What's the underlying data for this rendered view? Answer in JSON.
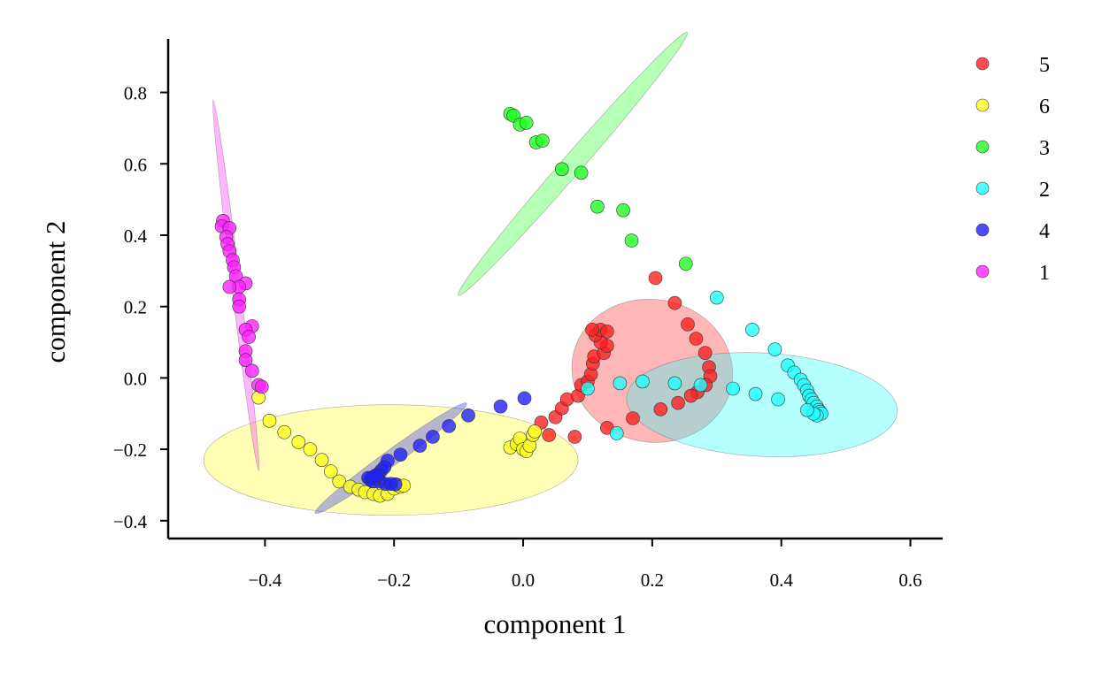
{
  "chart_data": {
    "type": "scatter",
    "title": "",
    "xlabel": "component 1",
    "ylabel": "component 2",
    "xlim": [
      -0.55,
      0.65
    ],
    "ylim": [
      -0.45,
      0.95
    ],
    "xticks": [
      -0.4,
      -0.2,
      0.0,
      0.2,
      0.4,
      0.6
    ],
    "yticks": [
      -0.4,
      -0.2,
      0.0,
      0.2,
      0.4,
      0.6,
      0.8
    ],
    "xtick_labels": [
      "−0.4",
      "−0.2",
      "0.0",
      "0.2",
      "0.4",
      "0.6"
    ],
    "ytick_labels": [
      "−0.4",
      "−0.2",
      "0.0",
      "0.2",
      "0.4",
      "0.6",
      "0.8"
    ],
    "grid": false,
    "legend_position": "top-right outside",
    "series": [
      {
        "name": "5",
        "color": "#ff2020",
        "ellipse": {
          "cx": 0.2,
          "cy": 0.02,
          "rx": 0.125,
          "ry": 0.2,
          "angle_deg": -10
        },
        "points": [
          [
            0.205,
            0.28
          ],
          [
            0.235,
            0.21
          ],
          [
            0.255,
            0.15
          ],
          [
            0.268,
            0.11
          ],
          [
            0.282,
            0.07
          ],
          [
            0.288,
            0.03
          ],
          [
            0.29,
            0.005
          ],
          [
            0.283,
            -0.02
          ],
          [
            0.27,
            -0.04
          ],
          [
            0.26,
            -0.05
          ],
          [
            0.24,
            -0.07
          ],
          [
            0.213,
            -0.088
          ],
          [
            0.17,
            -0.113
          ],
          [
            0.13,
            -0.14
          ],
          [
            0.08,
            -0.165
          ],
          [
            0.04,
            -0.16
          ],
          [
            0.028,
            -0.125
          ],
          [
            0.05,
            -0.11
          ],
          [
            0.06,
            -0.085
          ],
          [
            0.068,
            -0.06
          ],
          [
            0.085,
            -0.05
          ],
          [
            0.09,
            -0.02
          ],
          [
            0.1,
            -0.01
          ],
          [
            0.105,
            0.01
          ],
          [
            0.108,
            0.04
          ],
          [
            0.11,
            0.06
          ],
          [
            0.125,
            0.07
          ],
          [
            0.13,
            0.09
          ],
          [
            0.12,
            0.1
          ],
          [
            0.112,
            0.12
          ],
          [
            0.12,
            0.135
          ],
          [
            0.13,
            0.13
          ],
          [
            0.107,
            0.135
          ]
        ]
      },
      {
        "name": "6",
        "color": "#ffff20",
        "ellipse": {
          "cx": -0.205,
          "cy": -0.23,
          "rx": 0.29,
          "ry": 0.155,
          "angle_deg": 0
        },
        "points": [
          [
            -0.41,
            -0.055
          ],
          [
            -0.393,
            -0.12
          ],
          [
            -0.37,
            -0.152
          ],
          [
            -0.348,
            -0.18
          ],
          [
            -0.33,
            -0.2
          ],
          [
            -0.312,
            -0.23
          ],
          [
            -0.298,
            -0.262
          ],
          [
            -0.285,
            -0.29
          ],
          [
            -0.268,
            -0.305
          ],
          [
            -0.255,
            -0.313
          ],
          [
            -0.245,
            -0.32
          ],
          [
            -0.232,
            -0.325
          ],
          [
            -0.222,
            -0.33
          ],
          [
            -0.21,
            -0.325
          ],
          [
            -0.2,
            -0.31
          ],
          [
            -0.195,
            -0.3
          ],
          [
            -0.19,
            -0.305
          ],
          [
            -0.185,
            -0.302
          ],
          [
            -0.02,
            -0.195
          ],
          [
            -0.01,
            -0.185
          ],
          [
            -0.005,
            -0.17
          ],
          [
            0.0,
            -0.2
          ],
          [
            0.005,
            -0.205
          ],
          [
            0.01,
            -0.19
          ],
          [
            0.015,
            -0.16
          ],
          [
            0.018,
            -0.15
          ]
        ]
      },
      {
        "name": "3",
        "color": "#20ff20",
        "ellipse": {
          "cx": 0.077,
          "cy": 0.6,
          "rx": 0.27,
          "ry": 0.028,
          "angle_deg": 49
        },
        "points": [
          [
            -0.02,
            0.74
          ],
          [
            -0.015,
            0.735
          ],
          [
            -0.005,
            0.71
          ],
          [
            0.005,
            0.715
          ],
          [
            0.02,
            0.66
          ],
          [
            0.03,
            0.665
          ],
          [
            0.06,
            0.585
          ],
          [
            0.09,
            0.575
          ],
          [
            0.115,
            0.48
          ],
          [
            0.155,
            0.47
          ],
          [
            0.168,
            0.385
          ],
          [
            0.252,
            0.32
          ]
        ]
      },
      {
        "name": "2",
        "color": "#20ffff",
        "ellipse": {
          "cx": 0.37,
          "cy": -0.075,
          "rx": 0.21,
          "ry": 0.145,
          "angle_deg": -3
        },
        "points": [
          [
            0.3,
            0.225
          ],
          [
            0.355,
            0.135
          ],
          [
            0.39,
            0.08
          ],
          [
            0.41,
            0.035
          ],
          [
            0.42,
            0.015
          ],
          [
            0.43,
            -0.005
          ],
          [
            0.435,
            -0.02
          ],
          [
            0.44,
            -0.035
          ],
          [
            0.443,
            -0.05
          ],
          [
            0.447,
            -0.06
          ],
          [
            0.45,
            -0.07
          ],
          [
            0.455,
            -0.08
          ],
          [
            0.458,
            -0.09
          ],
          [
            0.46,
            -0.095
          ],
          [
            0.462,
            -0.1
          ],
          [
            0.455,
            -0.105
          ],
          [
            0.45,
            -0.1
          ],
          [
            0.44,
            -0.09
          ],
          [
            0.395,
            -0.06
          ],
          [
            0.36,
            -0.045
          ],
          [
            0.325,
            -0.03
          ],
          [
            0.275,
            -0.02
          ],
          [
            0.235,
            -0.015
          ],
          [
            0.185,
            -0.01
          ],
          [
            0.15,
            -0.015
          ],
          [
            0.1,
            -0.03
          ],
          [
            0.145,
            -0.155
          ]
        ]
      },
      {
        "name": "4",
        "color": "#2020ff",
        "ellipse": {
          "cx": -0.205,
          "cy": -0.225,
          "rx": 0.145,
          "ry": 0.022,
          "angle_deg": 36
        },
        "points": [
          [
            0.002,
            -0.057
          ],
          [
            -0.035,
            -0.08
          ],
          [
            -0.085,
            -0.105
          ],
          [
            -0.115,
            -0.135
          ],
          [
            -0.14,
            -0.165
          ],
          [
            -0.16,
            -0.19
          ],
          [
            -0.19,
            -0.215
          ],
          [
            -0.21,
            -0.232
          ],
          [
            -0.215,
            -0.25
          ],
          [
            -0.22,
            -0.26
          ],
          [
            -0.225,
            -0.27
          ],
          [
            -0.23,
            -0.275
          ],
          [
            -0.235,
            -0.28
          ],
          [
            -0.237,
            -0.285
          ],
          [
            -0.24,
            -0.28
          ],
          [
            -0.232,
            -0.29
          ],
          [
            -0.222,
            -0.29
          ],
          [
            -0.213,
            -0.297
          ],
          [
            -0.205,
            -0.297
          ],
          [
            -0.198,
            -0.298
          ],
          [
            -0.228,
            -0.273
          ]
        ]
      },
      {
        "name": "1",
        "color": "#ff20ff",
        "ellipse": {
          "cx": -0.445,
          "cy": 0.26,
          "rx": 0.29,
          "ry": 0.012,
          "angle_deg": -83
        },
        "points": [
          [
            -0.465,
            0.44
          ],
          [
            -0.467,
            0.425
          ],
          [
            -0.455,
            0.42
          ],
          [
            -0.46,
            0.395
          ],
          [
            -0.458,
            0.375
          ],
          [
            -0.455,
            0.355
          ],
          [
            -0.45,
            0.33
          ],
          [
            -0.448,
            0.31
          ],
          [
            -0.445,
            0.285
          ],
          [
            -0.43,
            0.265
          ],
          [
            -0.44,
            0.255
          ],
          [
            -0.455,
            0.255
          ],
          [
            -0.44,
            0.22
          ],
          [
            -0.44,
            0.2
          ],
          [
            -0.42,
            0.145
          ],
          [
            -0.43,
            0.135
          ],
          [
            -0.425,
            0.115
          ],
          [
            -0.43,
            0.075
          ],
          [
            -0.43,
            0.05
          ],
          [
            -0.42,
            0.02
          ],
          [
            -0.41,
            -0.02
          ],
          [
            -0.405,
            -0.025
          ]
        ]
      }
    ]
  }
}
